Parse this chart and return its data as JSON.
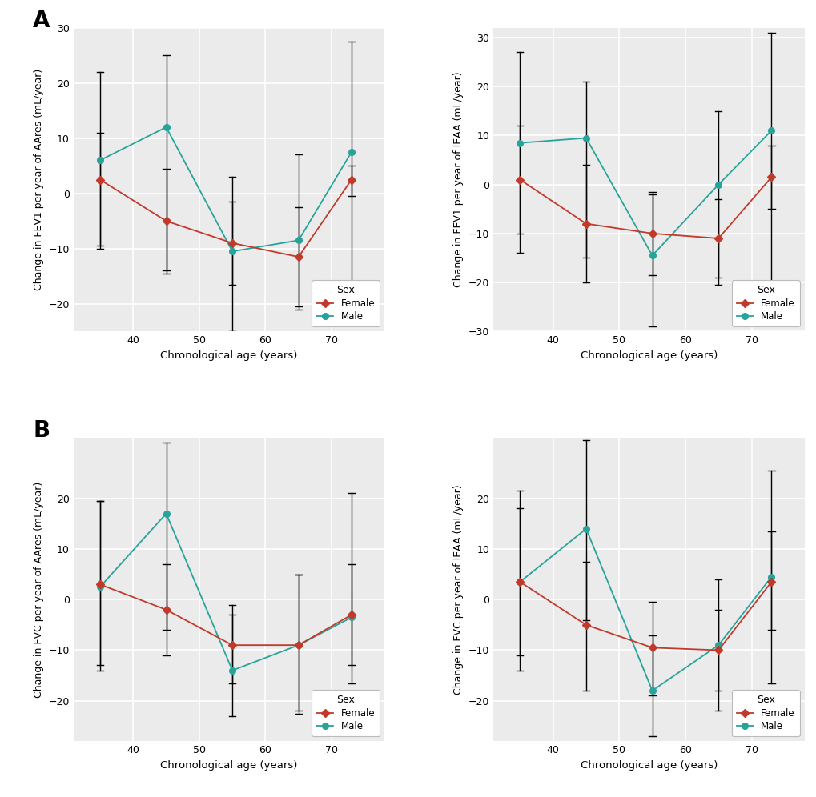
{
  "female_color": "#C0392B",
  "male_color": "#27A49A",
  "panel_bg": "#EBEBEB",
  "grid_color": "#FFFFFF",
  "A_left": {
    "ylabel": "Change in FEV1 per year of AAres (mL/year)",
    "xlabel": "Chronological age (years)",
    "xlim": [
      31,
      78
    ],
    "ylim": [
      -25,
      30
    ],
    "yticks": [
      -20,
      -10,
      0,
      10,
      20,
      30
    ],
    "xticks": [
      40,
      50,
      60,
      70
    ],
    "female_x": [
      35,
      45,
      55,
      65,
      73
    ],
    "female_y": [
      2.5,
      -5.0,
      -9.0,
      -11.5,
      2.5
    ],
    "female_ylo": [
      -9.5,
      -14.5,
      -16.5,
      -20.5,
      -0.5
    ],
    "female_yhi": [
      11.0,
      4.5,
      -1.5,
      -2.5,
      5.0
    ],
    "male_x": [
      35,
      45,
      55,
      65,
      73
    ],
    "male_y": [
      6.0,
      12.0,
      -10.5,
      -8.5,
      7.5
    ],
    "male_ylo": [
      -10.0,
      -14.0,
      -25.0,
      -21.0,
      -18.0
    ],
    "male_yhi": [
      22.0,
      25.0,
      3.0,
      7.0,
      27.5
    ]
  },
  "A_right": {
    "ylabel": "Change in FEV1 per year of IEAA (mL/year)",
    "xlabel": "Chronological age (years)",
    "xlim": [
      31,
      78
    ],
    "ylim": [
      -30,
      32
    ],
    "yticks": [
      -30,
      -20,
      -10,
      0,
      10,
      20,
      30
    ],
    "xticks": [
      40,
      50,
      60,
      70
    ],
    "female_x": [
      35,
      45,
      55,
      65,
      73
    ],
    "female_y": [
      1.0,
      -8.0,
      -10.0,
      -11.0,
      1.5
    ],
    "female_ylo": [
      -14.0,
      -20.0,
      -18.5,
      -19.0,
      -5.0
    ],
    "female_yhi": [
      12.0,
      4.0,
      -1.5,
      -3.0,
      8.0
    ],
    "male_x": [
      35,
      45,
      55,
      65,
      73
    ],
    "male_y": [
      8.5,
      9.5,
      -14.5,
      0.0,
      11.0
    ],
    "male_ylo": [
      -10.0,
      -15.0,
      -29.0,
      -20.5,
      -20.0
    ],
    "male_yhi": [
      27.0,
      21.0,
      -2.0,
      15.0,
      31.0
    ]
  },
  "B_left": {
    "ylabel": "Change in FVC per year of AAres (mL/year)",
    "xlabel": "Chronological age (years)",
    "xlim": [
      31,
      78
    ],
    "ylim": [
      -28,
      32
    ],
    "yticks": [
      -20,
      -10,
      0,
      10,
      20
    ],
    "xticks": [
      40,
      50,
      60,
      70
    ],
    "female_x": [
      35,
      45,
      55,
      65,
      73
    ],
    "female_y": [
      3.0,
      -2.0,
      -9.0,
      -9.0,
      -3.0
    ],
    "female_ylo": [
      -13.0,
      -11.0,
      -16.5,
      -22.5,
      -13.0
    ],
    "female_yhi": [
      19.5,
      7.0,
      -1.0,
      5.0,
      7.0
    ],
    "male_x": [
      35,
      45,
      55,
      65,
      73
    ],
    "male_y": [
      2.5,
      17.0,
      -14.0,
      -9.0,
      -3.5
    ],
    "male_ylo": [
      -14.0,
      -6.0,
      -23.0,
      -22.0,
      -16.5
    ],
    "male_yhi": [
      19.5,
      31.0,
      -3.0,
      5.0,
      21.0
    ]
  },
  "B_right": {
    "ylabel": "Change in FVC per year of IEAA (mL/year)",
    "xlabel": "Chronological age (years)",
    "xlim": [
      31,
      78
    ],
    "ylim": [
      -28,
      32
    ],
    "yticks": [
      -20,
      -10,
      0,
      10,
      20
    ],
    "xticks": [
      40,
      50,
      60,
      70
    ],
    "female_x": [
      35,
      45,
      55,
      65,
      73
    ],
    "female_y": [
      3.5,
      -5.0,
      -9.5,
      -10.0,
      3.5
    ],
    "female_ylo": [
      -11.0,
      -18.0,
      -19.0,
      -18.0,
      -6.0
    ],
    "female_yhi": [
      18.0,
      7.5,
      -0.5,
      -2.0,
      13.5
    ],
    "male_x": [
      35,
      45,
      55,
      65,
      73
    ],
    "male_y": [
      3.5,
      14.0,
      -18.0,
      -9.0,
      4.5
    ],
    "male_ylo": [
      -14.0,
      -4.0,
      -27.0,
      -22.0,
      -16.5
    ],
    "male_yhi": [
      21.5,
      31.5,
      -7.0,
      4.0,
      25.5
    ]
  }
}
